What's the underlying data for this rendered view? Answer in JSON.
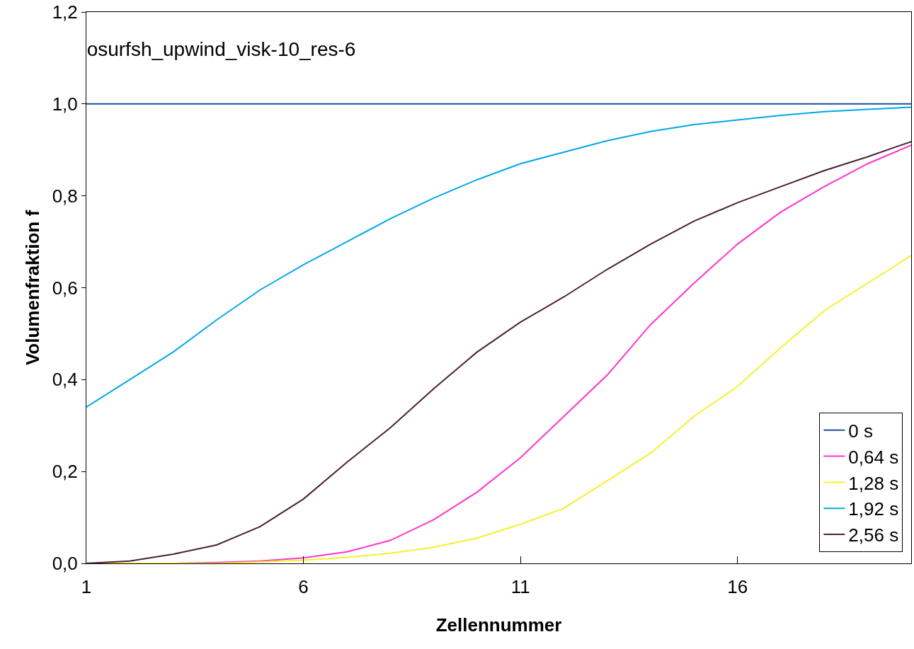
{
  "chart_data": {
    "type": "line",
    "title": "osurfsh_upwind_visk-10_res-6",
    "xlabel": "Zellennummer",
    "ylabel": "Volumenfraktion f",
    "x": [
      1,
      2,
      3,
      4,
      5,
      6,
      7,
      8,
      9,
      10,
      11,
      12,
      13,
      14,
      15,
      16,
      17,
      18,
      19,
      20
    ],
    "xlim": [
      1,
      20
    ],
    "xticks": [
      1,
      6,
      11,
      16
    ],
    "ylim": [
      0,
      1.2
    ],
    "yticks": [
      {
        "value": 0,
        "label": "0,0"
      },
      {
        "value": 0.2,
        "label": "0,2"
      },
      {
        "value": 0.4,
        "label": "0,4"
      },
      {
        "value": 0.6,
        "label": "0,6"
      },
      {
        "value": 0.8,
        "label": "0,8"
      },
      {
        "value": 1,
        "label": "1,0"
      },
      {
        "value": 1.2,
        "label": "1,2"
      }
    ],
    "grid": false,
    "legend": "bottom right",
    "marker": "none",
    "line_style": "solid",
    "series": [
      {
        "name": "0 s",
        "color": "#1f4e9a",
        "values": [
          1,
          1,
          1,
          1,
          1,
          1,
          1,
          1,
          1,
          1,
          1,
          1,
          1,
          1,
          1,
          1,
          1,
          1,
          1,
          1
        ]
      },
      {
        "name": "0,64 s",
        "color": "#ff33cc",
        "values": [
          0,
          0,
          0,
          0.002,
          0.005,
          0.012,
          0.025,
          0.05,
          0.095,
          0.155,
          0.23,
          0.32,
          0.41,
          0.52,
          0.61,
          0.695,
          0.765,
          0.82,
          0.87,
          0.91
        ]
      },
      {
        "name": "1,28 s",
        "color": "#f5f02a",
        "values": [
          0,
          0,
          0,
          0,
          0.003,
          0.007,
          0.013,
          0.022,
          0.035,
          0.055,
          0.085,
          0.12,
          0.18,
          0.24,
          0.32,
          0.385,
          0.47,
          0.55,
          0.61,
          0.67
        ]
      },
      {
        "name": "1,92 s",
        "color": "#00a8e8",
        "values": [
          0.34,
          0.4,
          0.46,
          0.53,
          0.595,
          0.65,
          0.7,
          0.75,
          0.795,
          0.835,
          0.87,
          0.895,
          0.92,
          0.94,
          0.955,
          0.965,
          0.975,
          0.983,
          0.988,
          0.993
        ]
      },
      {
        "name": "2,56 s",
        "color": "#4a2030",
        "values": [
          0,
          0.005,
          0.02,
          0.04,
          0.08,
          0.14,
          0.22,
          0.295,
          0.38,
          0.46,
          0.525,
          0.58,
          0.64,
          0.695,
          0.745,
          0.785,
          0.82,
          0.855,
          0.885,
          0.918
        ]
      }
    ]
  }
}
